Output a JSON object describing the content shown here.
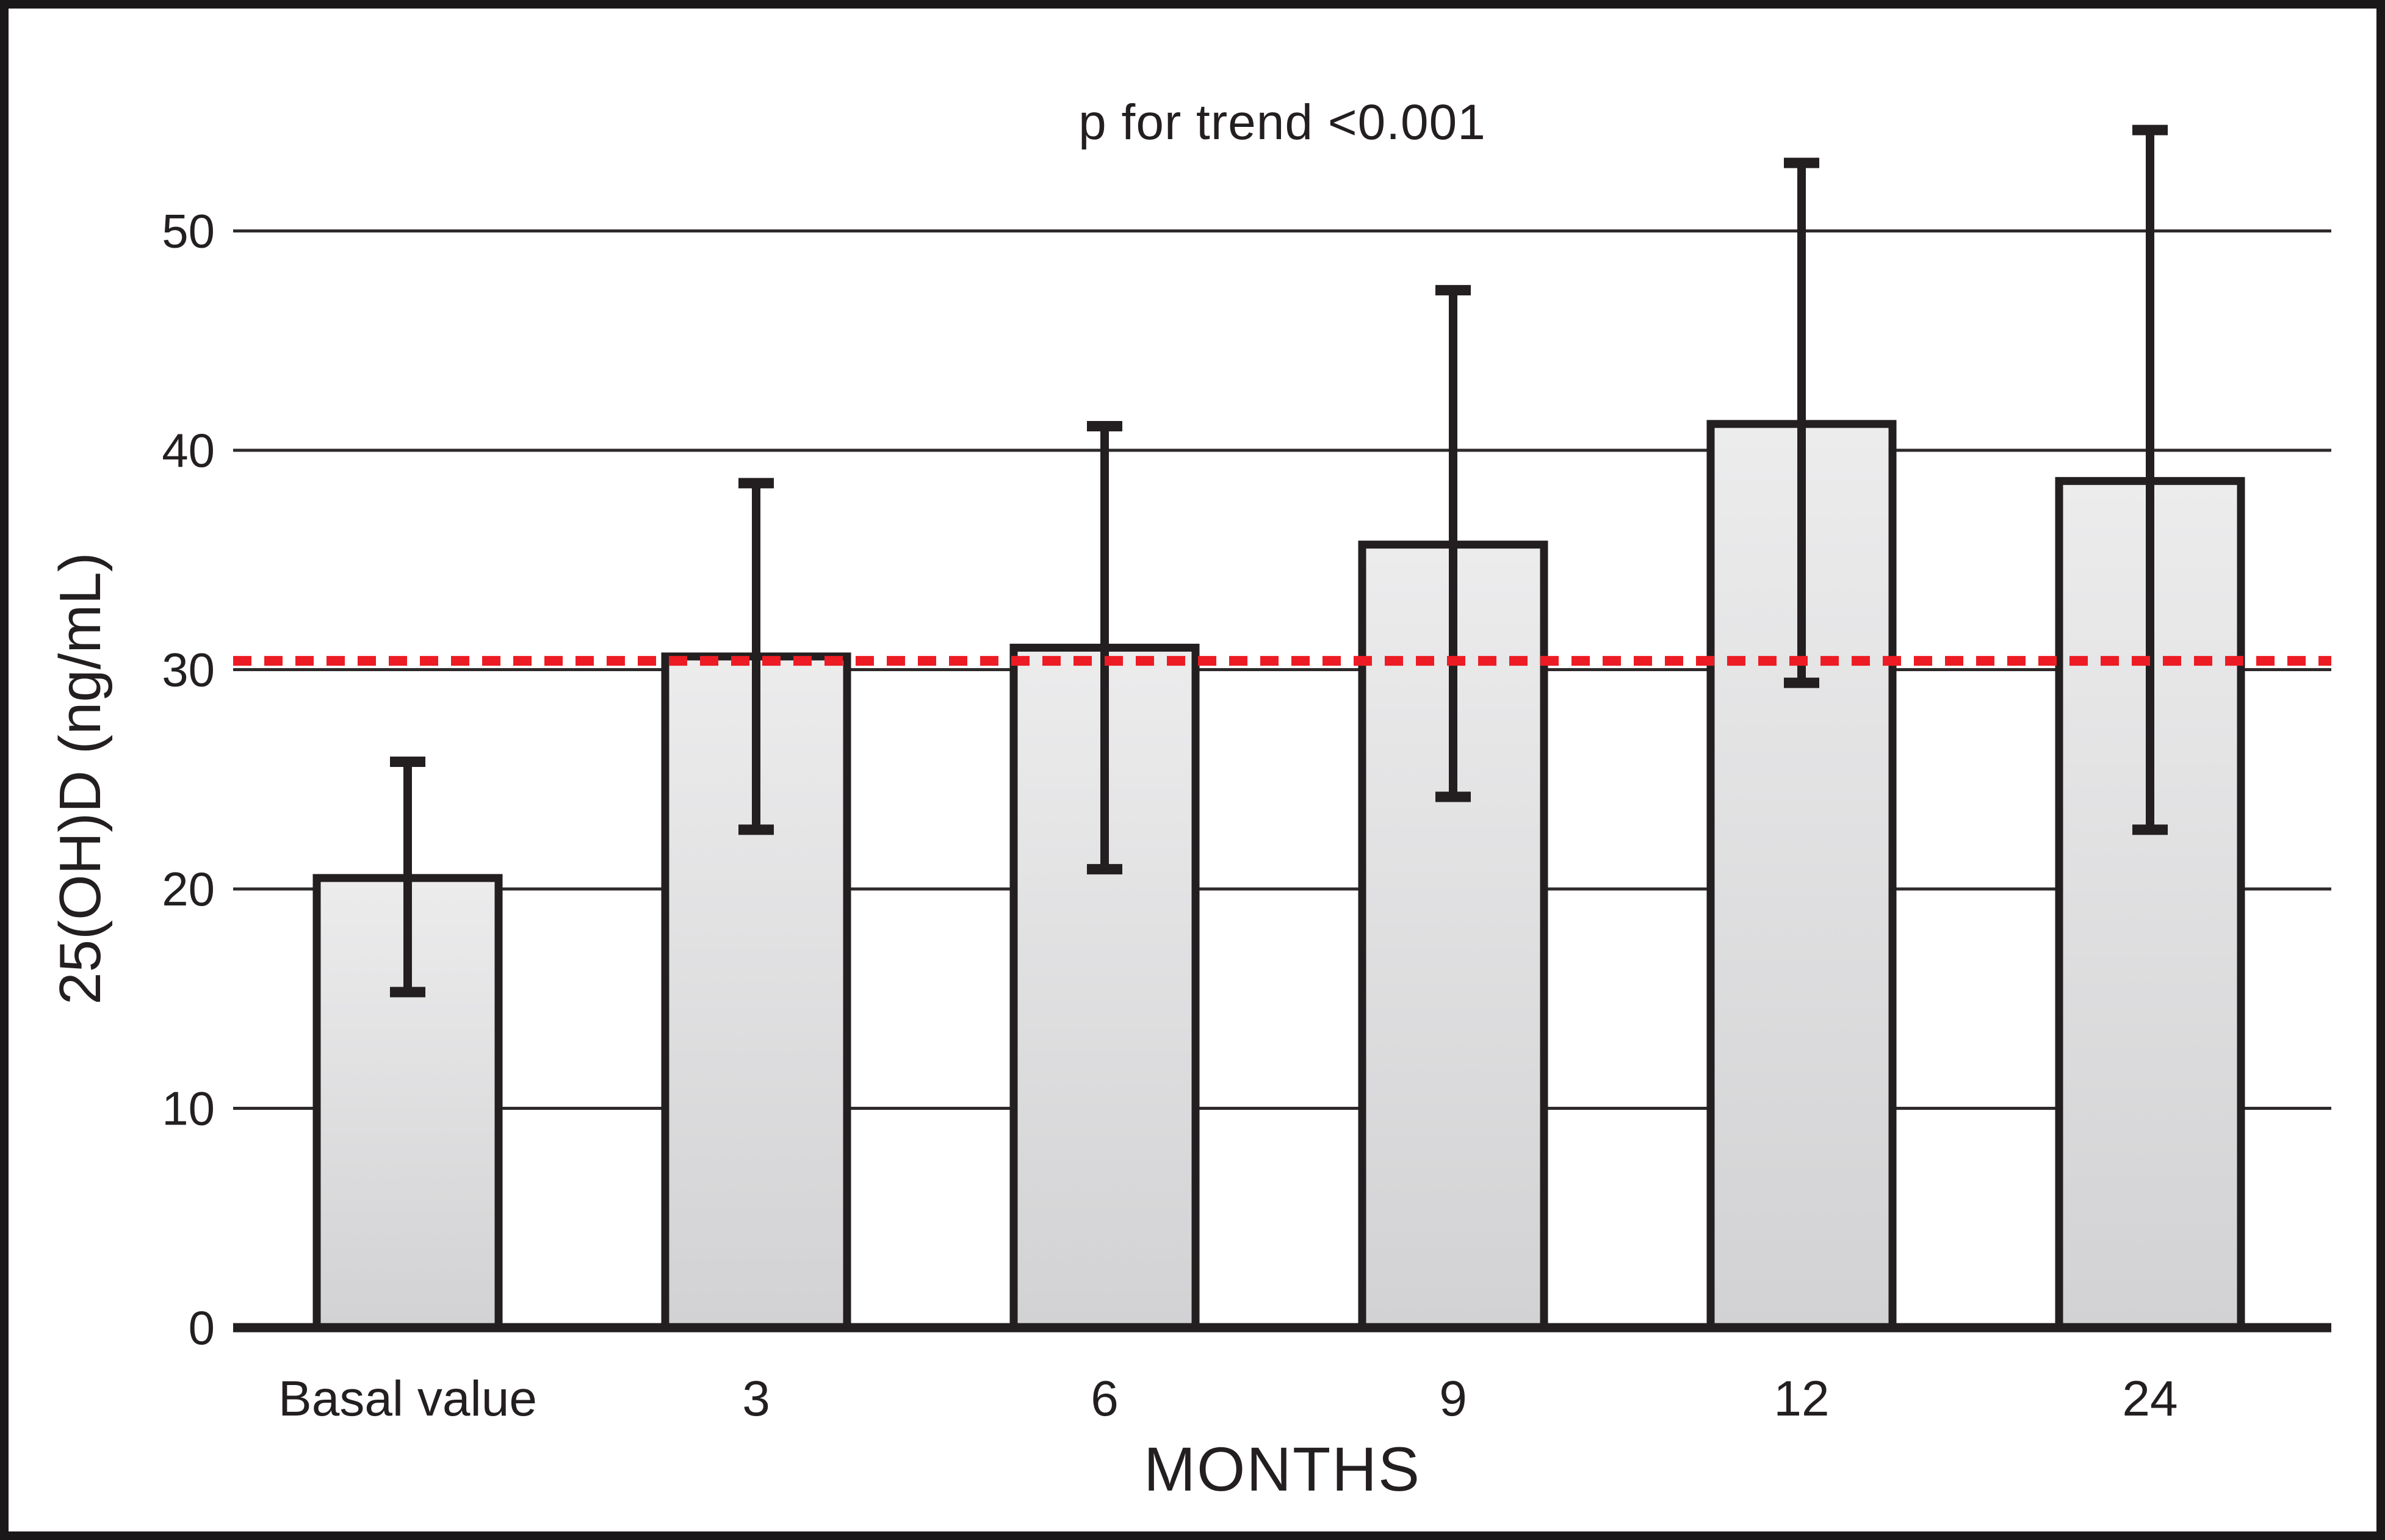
{
  "figure": {
    "background": "#ffffff",
    "frame_color": "#1b1819"
  },
  "chart_data": {
    "type": "bar",
    "annotation": "p for trend <0.001",
    "xlabel": "MONTHS",
    "ylabel": "25(OH)D (ng/mL)",
    "categories": [
      "Basal value",
      "3",
      "6",
      "9",
      "12",
      "24"
    ],
    "values": [
      20.5,
      30.6,
      31,
      35.7,
      41.2,
      38.6
    ],
    "error_low": [
      15.3,
      22.7,
      20.9,
      24.2,
      29.4,
      22.7
    ],
    "error_high": [
      25.8,
      38.5,
      41.1,
      47.3,
      53.1,
      54.6
    ],
    "yticks": [
      0,
      10,
      20,
      30,
      40,
      50
    ],
    "ylim": [
      0,
      55
    ],
    "grid": true,
    "legend": null,
    "reference_line": {
      "value": 30.4,
      "style": "dashed",
      "color": "#ed1c24"
    },
    "colors": {
      "bar_fill_top": "#ececed",
      "bar_fill_bottom": "#d2d2d4",
      "bar_outline": "#231f20",
      "gridline": "#2e2a2b",
      "text": "#231f20"
    }
  }
}
